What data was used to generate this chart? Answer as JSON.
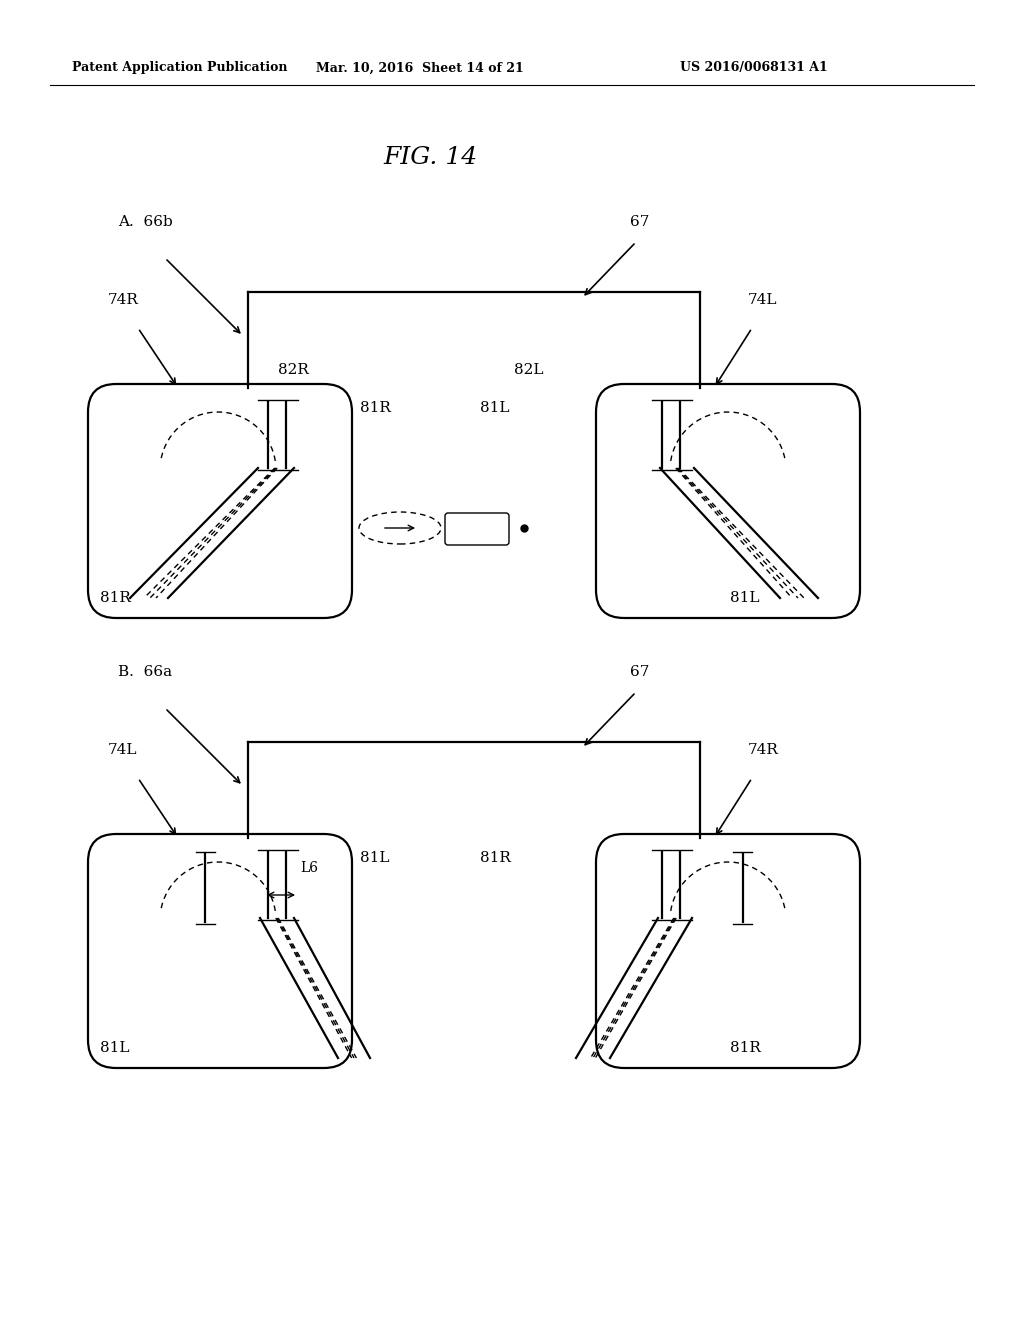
{
  "title": "FIG. 14",
  "header_left": "Patent Application Publication",
  "header_mid": "Mar. 10, 2016  Sheet 14 of 21",
  "header_right": "US 2016/0068131 A1",
  "bg_color": "#ffffff",
  "text_color": "#000000"
}
